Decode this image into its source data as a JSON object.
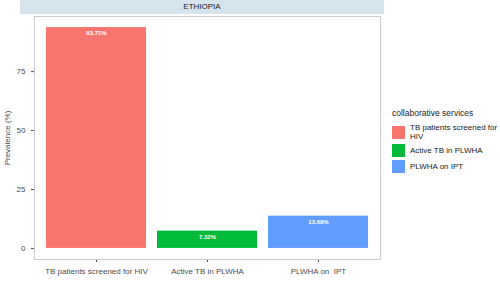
{
  "chart_data": {
    "type": "bar",
    "title": "ETHIOPIA",
    "legend_title": "collaborative services",
    "categories": [
      "TB patients screened for HIV",
      "Active TB in PLWHA",
      "PLWHA on  IPT"
    ],
    "values": [
      93.71,
      7.32,
      13.68
    ],
    "value_labels": [
      "93.71%",
      "7.32%",
      "13.68%"
    ],
    "colors": [
      "#F8766D",
      "#00BA38",
      "#619CFF"
    ],
    "ylabel": "Prevalence (%)",
    "ylim": [
      -4.7,
      98.4
    ],
    "yticks": [
      0,
      25,
      50,
      75
    ],
    "data_labels": true,
    "legend": "right",
    "grid": false
  }
}
